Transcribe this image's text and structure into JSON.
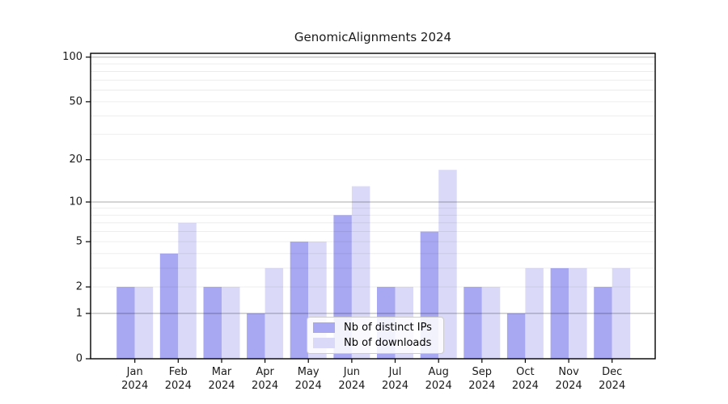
{
  "figure": {
    "background": "#ffffff"
  },
  "chart_data": {
    "type": "bar",
    "title": "GenomicAlignments 2024",
    "categories": [
      "Jan",
      "Feb",
      "Mar",
      "Apr",
      "May",
      "Jun",
      "Jul",
      "Aug",
      "Sep",
      "Oct",
      "Nov",
      "Dec"
    ],
    "category_year": "2024",
    "series": [
      {
        "name": "Nb of distinct IPs",
        "color": "#A8A8F2",
        "values": [
          2,
          4,
          2,
          1,
          5,
          8,
          2,
          6,
          2,
          1,
          3,
          2
        ]
      },
      {
        "name": "Nb of downloads",
        "color": "#DADAF8",
        "values": [
          2,
          7,
          2,
          3,
          5,
          13,
          2,
          17,
          2,
          3,
          3,
          3
        ]
      }
    ],
    "yscale": "log1p",
    "ylim": [
      0,
      106
    ],
    "yticks": [
      0,
      1,
      2,
      5,
      10,
      20,
      50,
      100
    ],
    "gridlines_minor": [
      2,
      3,
      4,
      6,
      7,
      8,
      9,
      5,
      20,
      30,
      40,
      50,
      60,
      70,
      80,
      90
    ],
    "gridlines_major": [
      1,
      10,
      100
    ],
    "grid": true,
    "legend_position": "lower center",
    "colors": {
      "axis": "#000000",
      "grid_minor": "rgba(0,0,0,0.08)",
      "grid_major": "rgba(0,0,0,0.33)",
      "tick_text": "#1a1a1a"
    }
  }
}
